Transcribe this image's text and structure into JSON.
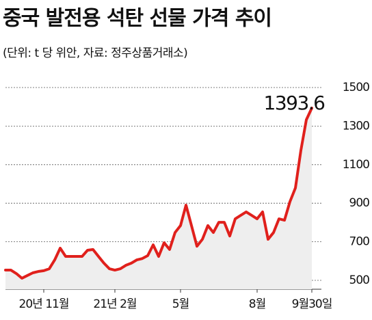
{
  "chart_data": {
    "type": "line",
    "title": "중국 발전용 석탄 선물 가격 추이",
    "subtitle": "(단위: t 당 위안, 자료: 정주상품거래소)",
    "annotation": "1393.6",
    "categories": [
      null,
      null,
      null,
      null,
      null,
      null,
      null,
      "20년 11월",
      null,
      null,
      null,
      null,
      null,
      null,
      null,
      null,
      null,
      null,
      null,
      null,
      "21년 2월",
      null,
      null,
      null,
      null,
      null,
      null,
      null,
      null,
      null,
      null,
      null,
      "5월",
      null,
      null,
      null,
      null,
      null,
      null,
      null,
      null,
      null,
      null,
      null,
      null,
      null,
      "8월",
      null,
      null,
      null,
      null,
      null,
      null,
      null,
      null,
      null,
      "9월30일"
    ],
    "values": [
      553,
      553,
      535,
      511,
      525,
      539,
      546,
      550,
      560,
      606,
      667,
      624,
      624,
      624,
      624,
      656,
      660,
      624,
      589,
      560,
      553,
      560,
      578,
      589,
      606,
      613,
      628,
      684,
      624,
      695,
      660,
      748,
      784,
      890,
      784,
      677,
      713,
      784,
      748,
      801,
      801,
      730,
      819,
      837,
      855,
      837,
      819,
      855,
      713,
      748,
      819,
      812,
      908,
      979,
      1174,
      1333,
      1393.6
    ],
    "color": "#e0201c",
    "area_color": "#eeeeee",
    "ylim": [
      500,
      1500
    ],
    "yticks": [
      500,
      700,
      900,
      1100,
      1300,
      1500
    ],
    "grid": true
  }
}
